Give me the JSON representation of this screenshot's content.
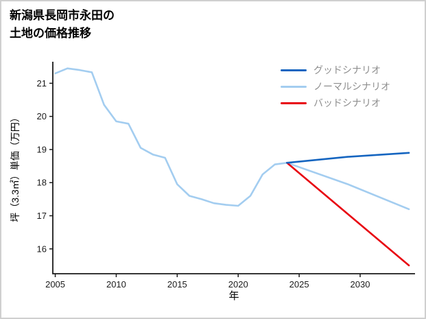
{
  "page": {
    "background": "#ffffff",
    "border_color": "#cfcfcf",
    "axis_color": "#1a1a1a",
    "legend_text_color": "#8e8e8e"
  },
  "chart_data": {
    "type": "line",
    "title_lines": [
      "新潟県長岡市永田の",
      "土地の価格推移"
    ],
    "xlabel": "年",
    "ylabel": "坪（3.3㎡）単価（万円）",
    "xlim": [
      2004.8,
      2034.5
    ],
    "ylim": [
      15.25,
      21.65
    ],
    "xticks": [
      2005,
      2010,
      2015,
      2020,
      2025,
      2030
    ],
    "yticks": [
      16,
      17,
      18,
      19,
      20,
      21
    ],
    "grid": false,
    "legend_position": "upper right",
    "series": [
      {
        "id": "history",
        "color": "#a3cdf0",
        "x": [
          2005,
          2006,
          2007,
          2008,
          2009,
          2010,
          2011,
          2012,
          2013,
          2014,
          2015,
          2016,
          2017,
          2018,
          2019,
          2020,
          2021,
          2022,
          2023,
          2024
        ],
        "y": [
          21.3,
          21.45,
          21.4,
          21.33,
          20.35,
          19.85,
          19.78,
          19.05,
          18.85,
          18.75,
          17.95,
          17.6,
          17.5,
          17.38,
          17.33,
          17.3,
          17.6,
          18.25,
          18.55,
          18.6
        ]
      },
      {
        "id": "normal-scenario",
        "color": "#a3cdf0",
        "x": [
          2024,
          2029,
          2034
        ],
        "y": [
          18.6,
          17.95,
          17.2
        ]
      },
      {
        "id": "bad-scenario",
        "color": "#e8000d",
        "x": [
          2024,
          2029,
          2034
        ],
        "y": [
          18.6,
          17.05,
          15.5
        ]
      },
      {
        "id": "good-scenario",
        "color": "#1565c0",
        "x": [
          2024,
          2029,
          2034
        ],
        "y": [
          18.6,
          18.78,
          18.9
        ]
      }
    ],
    "legend": [
      {
        "label": "グッドシナリオ",
        "color": "#1565c0"
      },
      {
        "label": "ノーマルシナリオ",
        "color": "#a3cdf0"
      },
      {
        "label": "バッドシナリオ",
        "color": "#e8000d"
      }
    ]
  }
}
